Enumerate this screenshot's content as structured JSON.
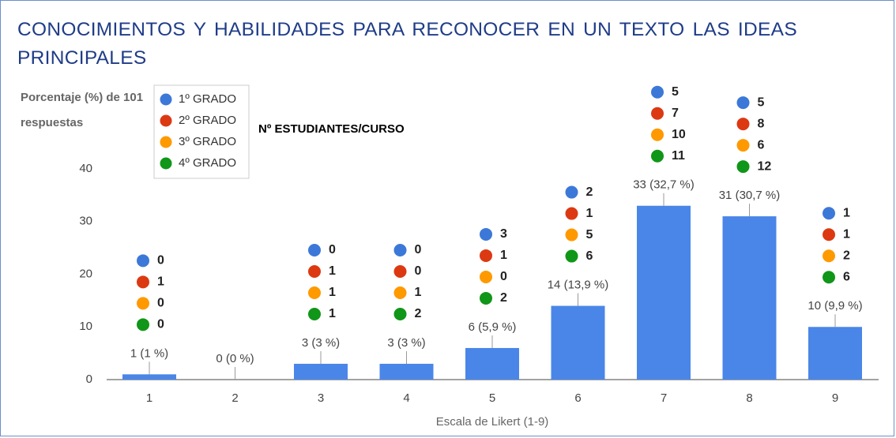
{
  "chart_data": {
    "type": "bar",
    "title": "CONOCIMIENTOS Y HABILIDADES PARA RECONOCER EN UN TEXTO LAS IDEAS PRINCIPALES",
    "y_label": "Porcentaje (%) de 101 respuestas",
    "x_label": "Escala de Likert (1-9)",
    "categories": [
      "1",
      "2",
      "3",
      "4",
      "5",
      "6",
      "7",
      "8",
      "9"
    ],
    "values": [
      1,
      0,
      3,
      3,
      6,
      14,
      33,
      31,
      10
    ],
    "value_labels": [
      "1 (1 %)",
      "0 (0 %)",
      "3 (3 %)",
      "3 (3 %)",
      "6 (5,9 %)",
      "14 (13,9 %)",
      "33 (32,7 %)",
      "31 (30,7 %)",
      "10 (9,9 %)"
    ],
    "color": "#4a86e8",
    "ylim": [
      0,
      40
    ],
    "yticks": [
      0,
      10,
      20,
      30,
      40
    ],
    "grid": false,
    "breakdown": {
      "title": "Nº ESTUDIANTES/CURSO",
      "series": [
        {
          "name": "1º GRADO",
          "color": "#3c78d8",
          "values": [
            0,
            null,
            0,
            0,
            3,
            2,
            5,
            5,
            1
          ]
        },
        {
          "name": "2º GRADO",
          "color": "#dc3912",
          "values": [
            1,
            null,
            1,
            0,
            1,
            1,
            7,
            8,
            1
          ]
        },
        {
          "name": "3º GRADO",
          "color": "#ff9900",
          "values": [
            0,
            null,
            1,
            1,
            0,
            5,
            10,
            6,
            2
          ]
        },
        {
          "name": "4º GRADO",
          "color": "#109618",
          "values": [
            0,
            null,
            1,
            2,
            2,
            6,
            11,
            12,
            6
          ]
        }
      ]
    }
  }
}
